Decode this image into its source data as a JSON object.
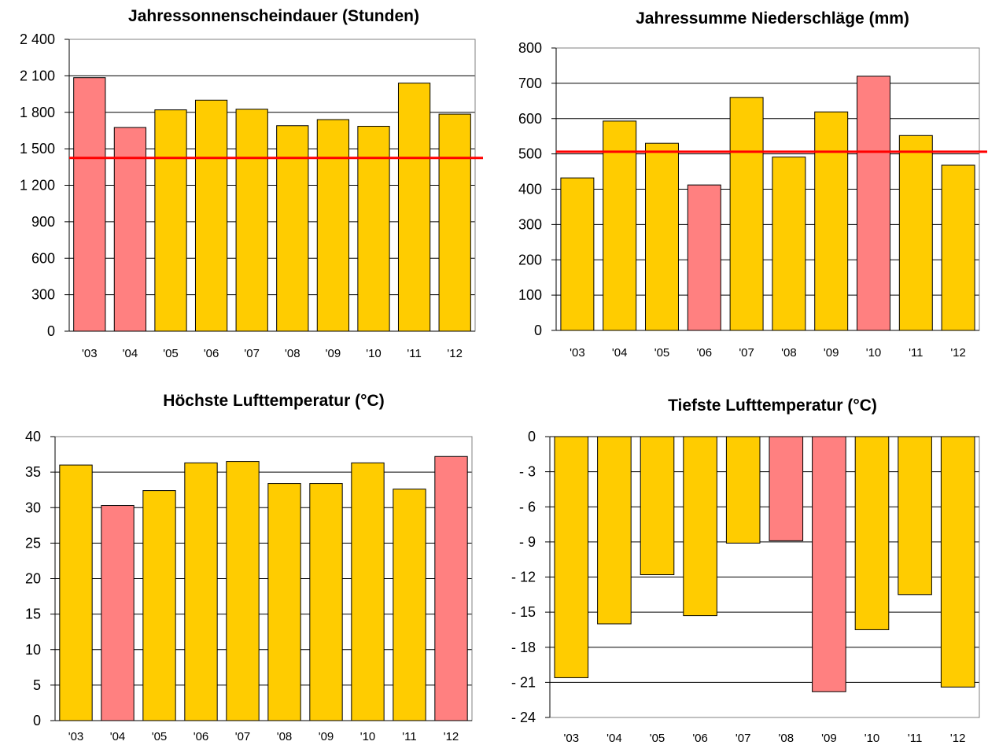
{
  "colors": {
    "normal": "#ffcc00",
    "extreme": "#ff8080",
    "reference": "#ff0000",
    "grid": "#000000"
  },
  "chart_data": [
    {
      "type": "bar",
      "title": "Jahressonnenscheindauer (Stunden)",
      "categories": [
        "'03",
        "'04",
        "'05",
        "'06",
        "'07",
        "'08",
        "'09",
        "'10",
        "'11",
        "'12"
      ],
      "values": [
        2085,
        1675,
        1820,
        1900,
        1825,
        1690,
        1740,
        1685,
        2040,
        1785
      ],
      "highlight": [
        true,
        true,
        false,
        false,
        false,
        false,
        false,
        false,
        false,
        false
      ],
      "ylim": [
        0,
        2400
      ],
      "yticks": [
        0,
        300,
        600,
        900,
        1200,
        1500,
        1800,
        2100,
        2400
      ],
      "ytick_labels": [
        "0",
        "300",
        "600",
        "900",
        "1 200",
        "1 500",
        "1 800",
        "2 100",
        "2 400"
      ],
      "reference_line": 1425,
      "grid": true
    },
    {
      "type": "bar",
      "title": "Jahressumme Niederschläge (mm)",
      "categories": [
        "'03",
        "'04",
        "'05",
        "'06",
        "'07",
        "'08",
        "'09",
        "'10",
        "'11",
        "'12"
      ],
      "values": [
        432,
        593,
        530,
        412,
        660,
        491,
        619,
        720,
        552,
        468
      ],
      "highlight": [
        false,
        false,
        false,
        true,
        false,
        false,
        false,
        true,
        false,
        false
      ],
      "ylim": [
        0,
        800
      ],
      "yticks": [
        0,
        100,
        200,
        300,
        400,
        500,
        600,
        700,
        800
      ],
      "ytick_labels": [
        "0",
        "100",
        "200",
        "300",
        "400",
        "500",
        "600",
        "700",
        "800"
      ],
      "reference_line": 506,
      "grid": true
    },
    {
      "type": "bar",
      "title": "Höchste Lufttemperatur (°C)",
      "categories": [
        "'03",
        "'04",
        "'05",
        "'06",
        "'07",
        "'08",
        "'09",
        "'10",
        "'11",
        "'12"
      ],
      "values": [
        36.0,
        30.3,
        32.4,
        36.3,
        36.5,
        33.4,
        33.4,
        36.3,
        32.6,
        37.2
      ],
      "highlight": [
        false,
        true,
        false,
        false,
        false,
        false,
        false,
        false,
        false,
        true
      ],
      "ylim": [
        0,
        40
      ],
      "yticks": [
        0,
        5,
        10,
        15,
        20,
        25,
        30,
        35,
        40
      ],
      "ytick_labels": [
        "0",
        "5",
        "10",
        "15",
        "20",
        "25",
        "30",
        "35",
        "40"
      ],
      "grid": true
    },
    {
      "type": "bar",
      "title": "Tiefste Lufttemperatur (°C)",
      "categories": [
        "'03",
        "'04",
        "'05",
        "'06",
        "'07",
        "'08",
        "'09",
        "'10",
        "'11",
        "'12"
      ],
      "values": [
        -20.6,
        -16.0,
        -11.8,
        -15.3,
        -9.1,
        -8.9,
        -21.8,
        -16.5,
        -13.5,
        -21.4
      ],
      "highlight": [
        false,
        false,
        false,
        false,
        false,
        true,
        true,
        false,
        false,
        false
      ],
      "ylim": [
        -24,
        0
      ],
      "yticks": [
        0,
        -3,
        -6,
        -9,
        -12,
        -15,
        -18,
        -21,
        -24
      ],
      "ytick_labels": [
        "0",
        "- 3",
        "- 6",
        "- 9",
        "- 12",
        "- 15",
        "- 18",
        "- 21",
        "- 24"
      ],
      "grid": true
    }
  ]
}
